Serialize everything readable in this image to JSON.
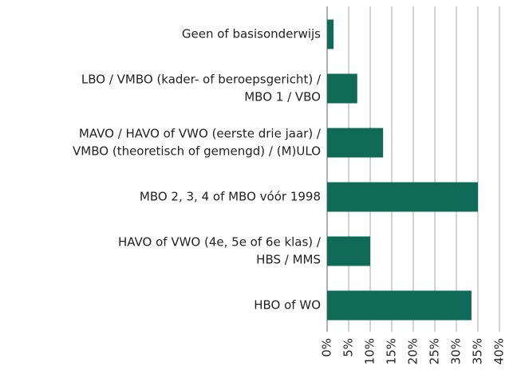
{
  "chart_data": {
    "type": "bar",
    "orientation": "horizontal",
    "categories": [
      [
        "Geen of basisonderwijs"
      ],
      [
        "LBO / VMBO (kader- of beroepsgericht) /",
        "MBO 1 / VBO"
      ],
      [
        "MAVO / HAVO of VWO (eerste drie jaar) /",
        "VMBO (theoretisch of gemengd) / (M)ULO"
      ],
      [
        "MBO 2, 3, 4 of MBO vóór 1998"
      ],
      [
        "HAVO of VWO (4e, 5e of 6e klas) /",
        "HBS / MMS"
      ],
      [
        "HBO of WO"
      ]
    ],
    "values": [
      1.5,
      7,
      13,
      35,
      10,
      33.5
    ],
    "color": "#0f6b57",
    "xlim": [
      0,
      40
    ],
    "xticks": [
      {
        "value": 0,
        "label": "0%"
      },
      {
        "value": 5,
        "label": "5%"
      },
      {
        "value": 10,
        "label": "10%"
      },
      {
        "value": 15,
        "label": "15%"
      },
      {
        "value": 20,
        "label": "20%"
      },
      {
        "value": 25,
        "label": "25%"
      },
      {
        "value": 30,
        "label": "30%"
      },
      {
        "value": 35,
        "label": "35%"
      },
      {
        "value": 40,
        "label": "40%"
      }
    ],
    "grid": true
  }
}
